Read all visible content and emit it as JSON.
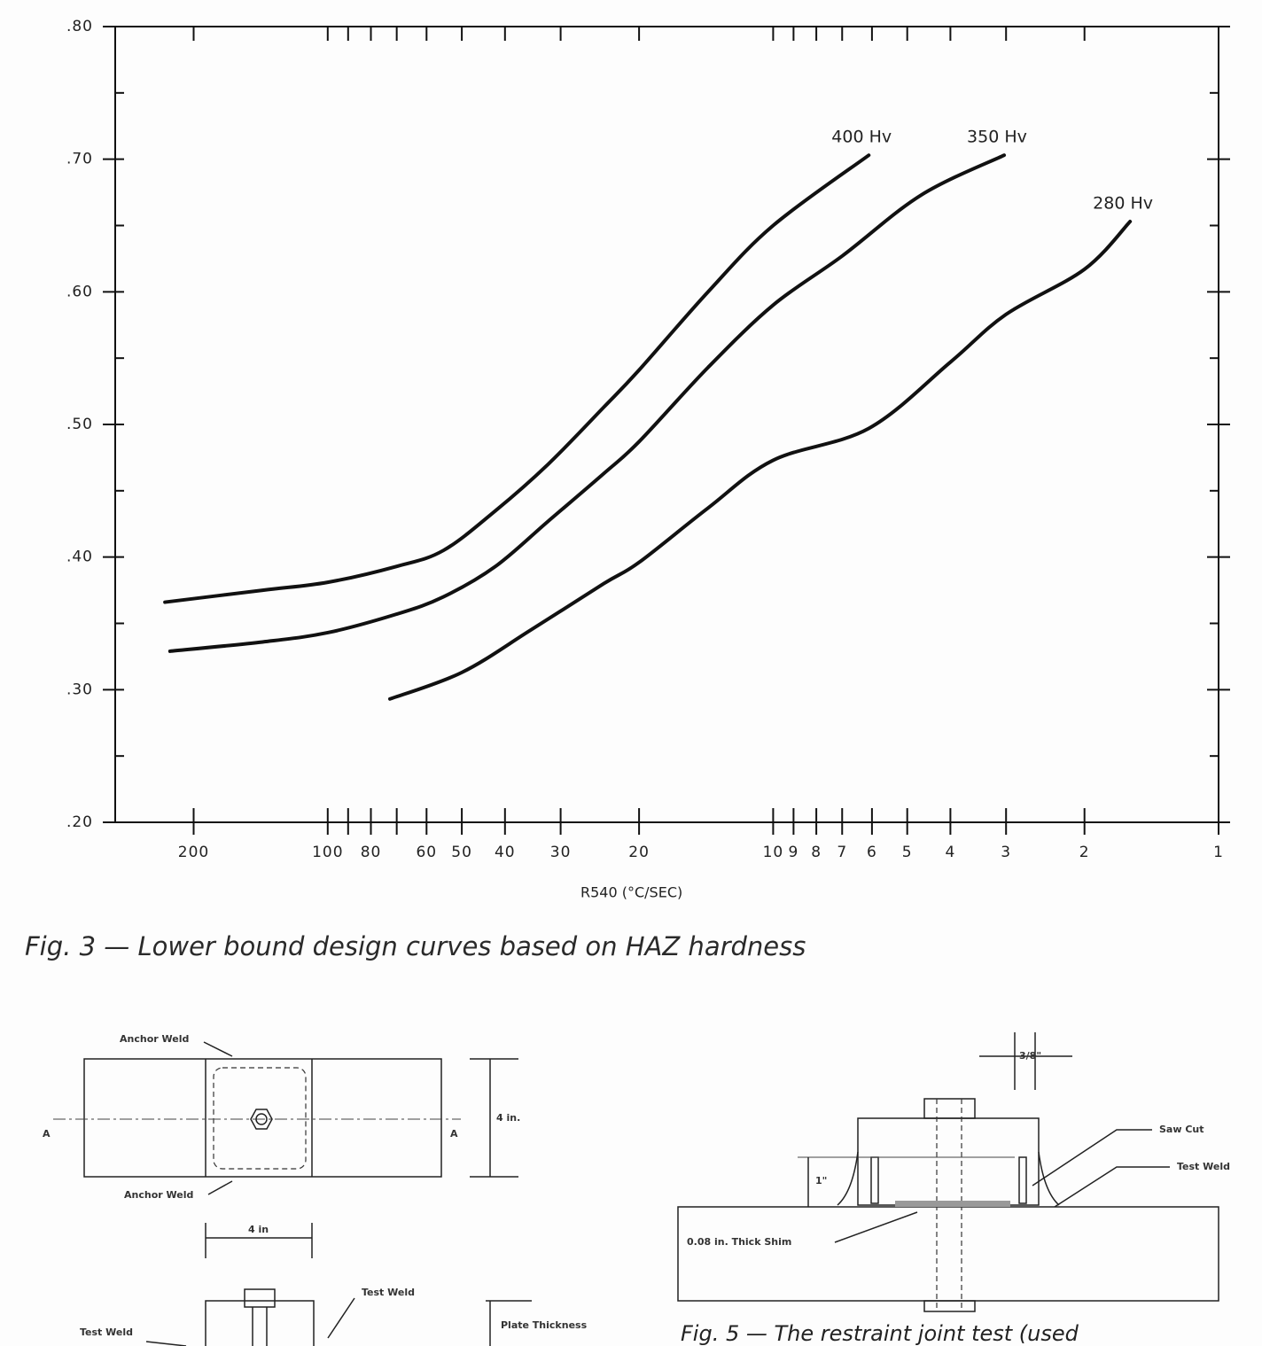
{
  "chart_data": {
    "type": "line",
    "xlabel": "R540 (°C/SEC)",
    "xscale": "log",
    "xlim": [
      300,
      1
    ],
    "ylim": [
      0.2,
      0.8
    ],
    "xticks": [
      200,
      100,
      80,
      60,
      50,
      40,
      30,
      20,
      10,
      9,
      8,
      7,
      6,
      5,
      4,
      3,
      2,
      1
    ],
    "xminorticks": [
      90,
      70
    ],
    "yticks": [
      {
        "value": 0.2,
        "label": ".20"
      },
      {
        "value": 0.3,
        "label": ".30"
      },
      {
        "value": 0.4,
        "label": ".40"
      },
      {
        "value": 0.5,
        "label": ".50"
      },
      {
        "value": 0.6,
        "label": ".60"
      },
      {
        "value": 0.7,
        "label": ".70"
      },
      {
        "value": 0.8,
        "label": ".80"
      }
    ],
    "yminorticks": [
      0.25,
      0.35,
      0.45,
      0.55,
      0.65,
      0.75
    ],
    "color": "#111111",
    "series": [
      {
        "name": "400 Hv",
        "x": [
          232,
          140,
          100,
          70,
          55,
          42,
          32,
          24,
          20,
          14,
          10,
          6.1
        ],
        "values": [
          0.366,
          0.375,
          0.381,
          0.393,
          0.405,
          0.435,
          0.47,
          0.513,
          0.541,
          0.6,
          0.65,
          0.703
        ]
      },
      {
        "name": "350 Hv",
        "x": [
          226,
          140,
          100,
          70,
          55,
          42,
          32,
          24,
          20,
          14,
          10,
          7,
          4.65,
          3.03
        ],
        "values": [
          0.329,
          0.336,
          0.343,
          0.357,
          0.37,
          0.393,
          0.427,
          0.463,
          0.487,
          0.543,
          0.59,
          0.627,
          0.673,
          0.703
        ]
      },
      {
        "name": "280 Hv",
        "x": [
          72.5,
          50,
          35,
          24,
          20,
          14,
          10,
          6.1,
          4,
          3,
          2,
          1.58
        ],
        "values": [
          0.293,
          0.313,
          0.345,
          0.38,
          0.396,
          0.437,
          0.473,
          0.497,
          0.547,
          0.583,
          0.617,
          0.653
        ]
      }
    ]
  },
  "figure_caption": "Fig. 3 — Lower bound design curves based on HAZ hardness",
  "left_diagram": {
    "anchor_weld_top": "Anchor Weld",
    "anchor_weld_bottom": "Anchor Weld",
    "section_left": "A",
    "section_right": "A",
    "height_dim": "4 in.",
    "width_dim": "4 in",
    "test_weld_right": "Test Weld",
    "test_weld_left": "Test Weld",
    "plate_thickness": "Plate Thickness"
  },
  "right_diagram": {
    "gap_dim": "3/8\"",
    "saw_cut": "Saw Cut",
    "test_weld": "Test Weld",
    "height_dim": "1\"",
    "shim": "0.08 in. Thick Shim",
    "caption": "Fig. 5 — The restraint joint test (used"
  }
}
